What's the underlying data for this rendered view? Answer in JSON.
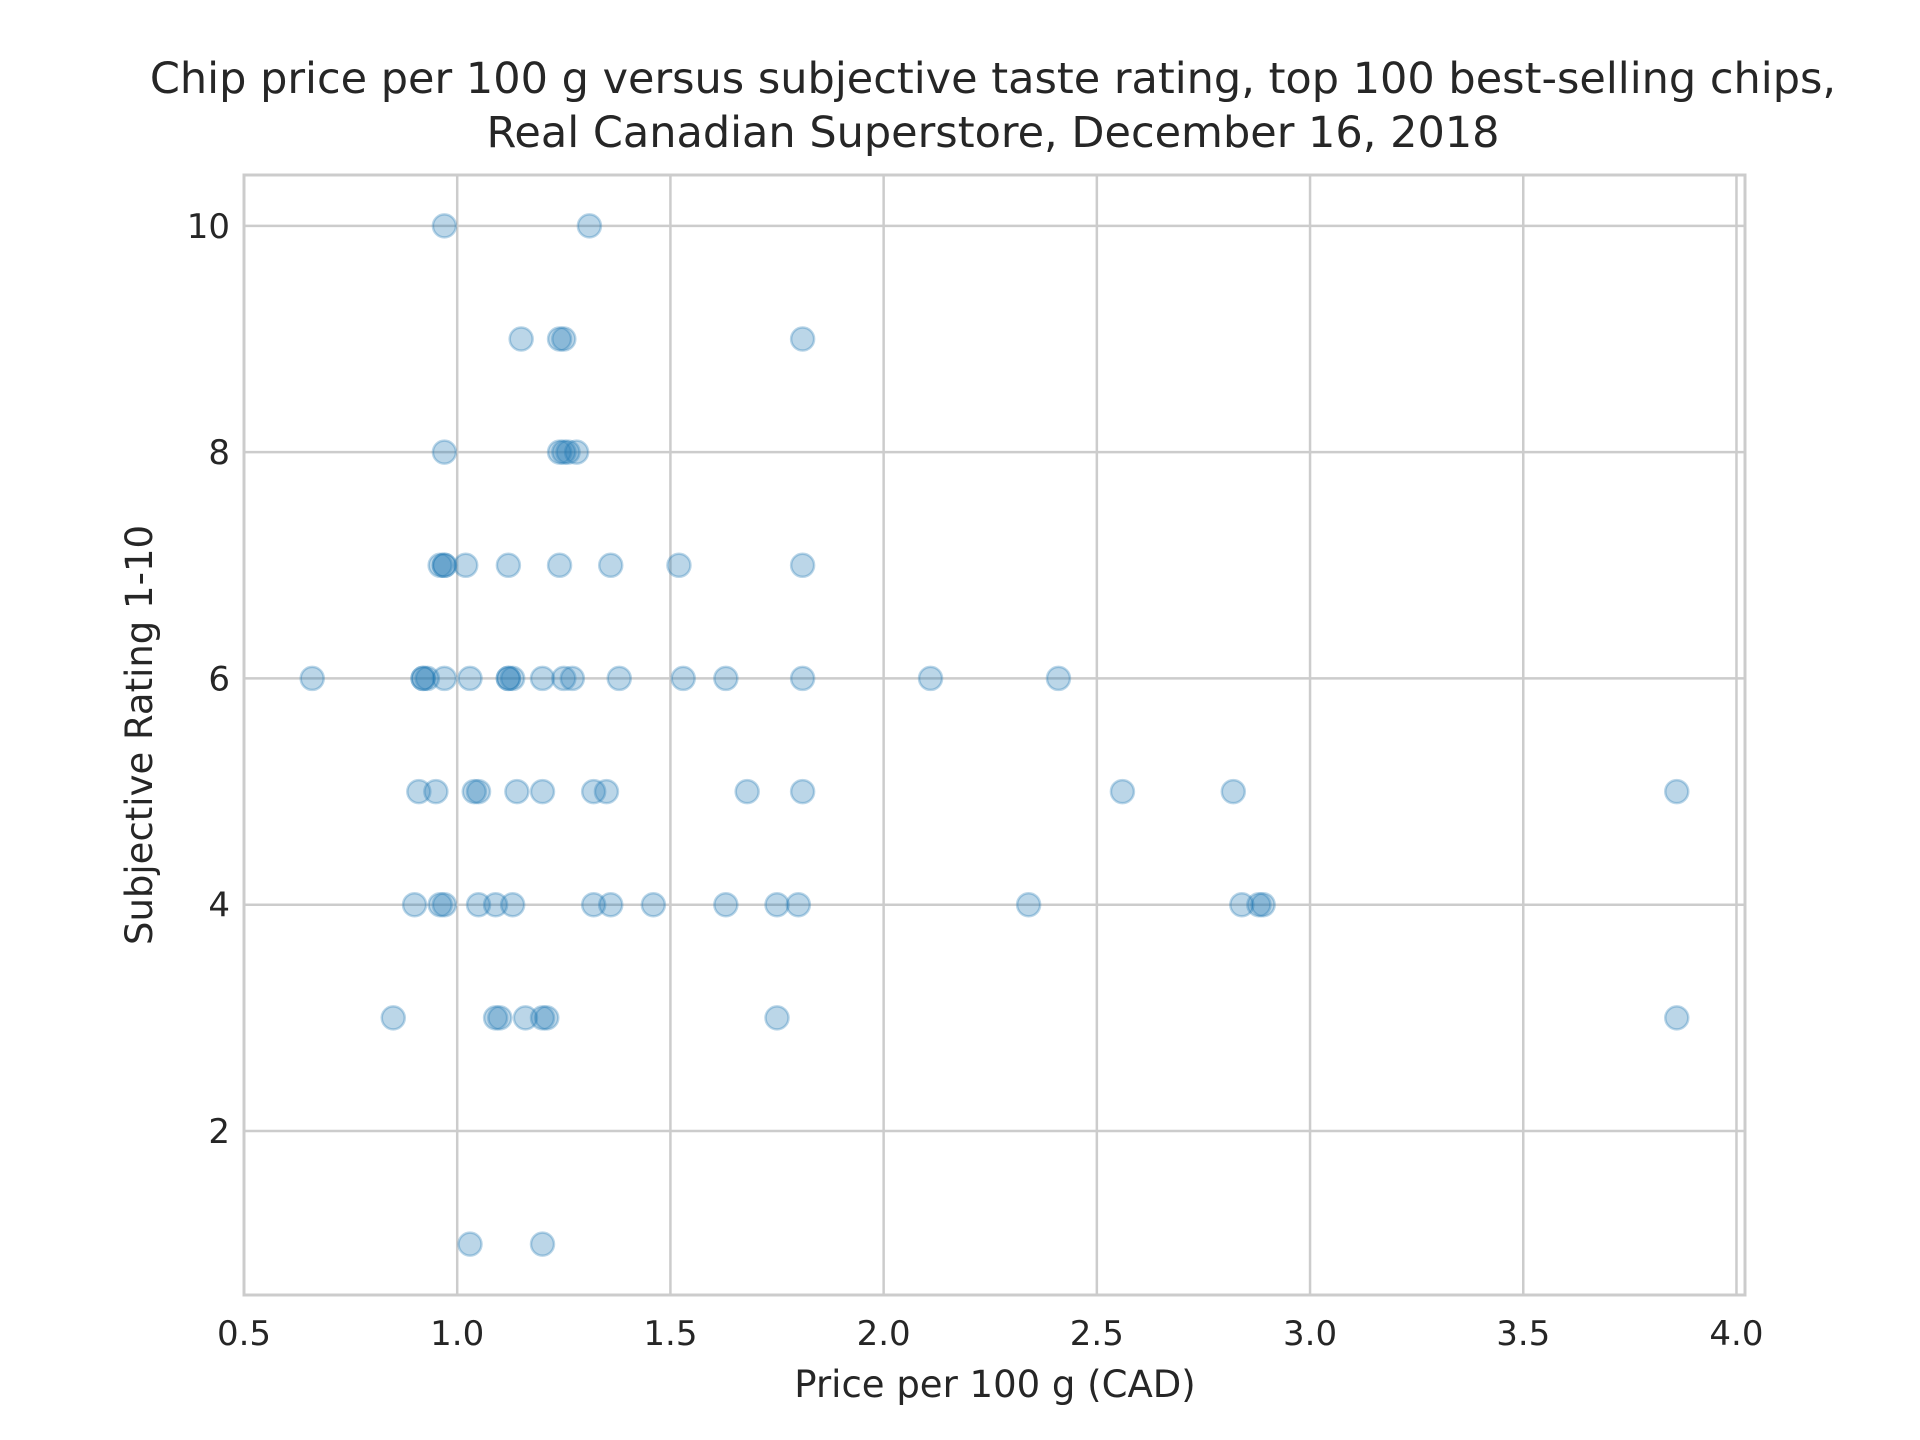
{
  "chart_data": {
    "type": "scatter",
    "title_lines": [
      "Chip price per 100 g versus subjective taste rating, top 100 best-selling chips,",
      "Real Canadian Superstore, December 16, 2018"
    ],
    "xlabel": "Price per 100 g (CAD)",
    "ylabel": "Subjective Rating 1-10",
    "xlim": [
      0.5,
      4.02
    ],
    "ylim": [
      0.55,
      10.45
    ],
    "xticks": [
      0.5,
      1.0,
      1.5,
      2.0,
      2.5,
      3.0,
      3.5,
      4.0
    ],
    "xtick_labels": [
      "0.5",
      "1.0",
      "1.5",
      "2.0",
      "2.5",
      "3.0",
      "3.5",
      "4.0"
    ],
    "yticks": [
      2,
      4,
      6,
      8,
      10
    ],
    "ytick_labels": [
      "2",
      "4",
      "6",
      "8",
      "10"
    ],
    "grid": true,
    "marker_color": "#1f77b4",
    "marker_alpha": 0.3,
    "points": [
      {
        "x": 0.97,
        "y": 10
      },
      {
        "x": 1.31,
        "y": 10
      },
      {
        "x": 1.15,
        "y": 9
      },
      {
        "x": 1.24,
        "y": 9
      },
      {
        "x": 1.25,
        "y": 9
      },
      {
        "x": 1.81,
        "y": 9
      },
      {
        "x": 0.97,
        "y": 8
      },
      {
        "x": 1.24,
        "y": 8
      },
      {
        "x": 1.25,
        "y": 8
      },
      {
        "x": 1.26,
        "y": 8
      },
      {
        "x": 1.28,
        "y": 8
      },
      {
        "x": 0.96,
        "y": 7
      },
      {
        "x": 0.97,
        "y": 7
      },
      {
        "x": 0.97,
        "y": 7
      },
      {
        "x": 1.02,
        "y": 7
      },
      {
        "x": 1.12,
        "y": 7
      },
      {
        "x": 1.24,
        "y": 7
      },
      {
        "x": 1.36,
        "y": 7
      },
      {
        "x": 1.52,
        "y": 7
      },
      {
        "x": 1.81,
        "y": 7
      },
      {
        "x": 0.66,
        "y": 6
      },
      {
        "x": 0.92,
        "y": 6
      },
      {
        "x": 0.92,
        "y": 6
      },
      {
        "x": 0.93,
        "y": 6
      },
      {
        "x": 0.97,
        "y": 6
      },
      {
        "x": 1.03,
        "y": 6
      },
      {
        "x": 1.12,
        "y": 6
      },
      {
        "x": 1.12,
        "y": 6
      },
      {
        "x": 1.13,
        "y": 6
      },
      {
        "x": 1.2,
        "y": 6
      },
      {
        "x": 1.25,
        "y": 6
      },
      {
        "x": 1.27,
        "y": 6
      },
      {
        "x": 1.38,
        "y": 6
      },
      {
        "x": 1.53,
        "y": 6
      },
      {
        "x": 1.63,
        "y": 6
      },
      {
        "x": 1.81,
        "y": 6
      },
      {
        "x": 2.11,
        "y": 6
      },
      {
        "x": 2.41,
        "y": 6
      },
      {
        "x": 0.91,
        "y": 5
      },
      {
        "x": 0.95,
        "y": 5
      },
      {
        "x": 1.04,
        "y": 5
      },
      {
        "x": 1.05,
        "y": 5
      },
      {
        "x": 1.14,
        "y": 5
      },
      {
        "x": 1.2,
        "y": 5
      },
      {
        "x": 1.32,
        "y": 5
      },
      {
        "x": 1.35,
        "y": 5
      },
      {
        "x": 1.68,
        "y": 5
      },
      {
        "x": 1.81,
        "y": 5
      },
      {
        "x": 2.56,
        "y": 5
      },
      {
        "x": 2.82,
        "y": 5
      },
      {
        "x": 3.86,
        "y": 5
      },
      {
        "x": 0.9,
        "y": 4
      },
      {
        "x": 0.96,
        "y": 4
      },
      {
        "x": 0.97,
        "y": 4
      },
      {
        "x": 1.05,
        "y": 4
      },
      {
        "x": 1.09,
        "y": 4
      },
      {
        "x": 1.13,
        "y": 4
      },
      {
        "x": 1.32,
        "y": 4
      },
      {
        "x": 1.36,
        "y": 4
      },
      {
        "x": 1.46,
        "y": 4
      },
      {
        "x": 1.63,
        "y": 4
      },
      {
        "x": 1.75,
        "y": 4
      },
      {
        "x": 1.8,
        "y": 4
      },
      {
        "x": 2.34,
        "y": 4
      },
      {
        "x": 2.84,
        "y": 4
      },
      {
        "x": 2.88,
        "y": 4
      },
      {
        "x": 2.89,
        "y": 4
      },
      {
        "x": 0.85,
        "y": 3
      },
      {
        "x": 1.09,
        "y": 3
      },
      {
        "x": 1.1,
        "y": 3
      },
      {
        "x": 1.16,
        "y": 3
      },
      {
        "x": 1.2,
        "y": 3
      },
      {
        "x": 1.21,
        "y": 3
      },
      {
        "x": 1.75,
        "y": 3
      },
      {
        "x": 3.86,
        "y": 3
      },
      {
        "x": 1.03,
        "y": 1
      },
      {
        "x": 1.2,
        "y": 1
      }
    ]
  }
}
